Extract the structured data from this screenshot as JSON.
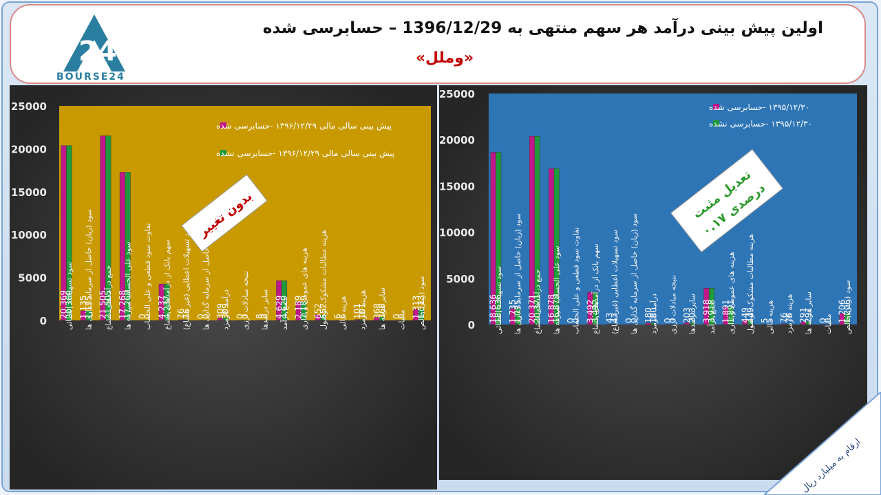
{
  "header": {
    "title": "اولین پیش بینی درآمد هر سهم منتهی به 1396/12/29 – حسابرسی شده",
    "subtitle": "«وملل»"
  },
  "logo": {
    "text": "BOURSE24"
  },
  "left_chart_note": "بدون تغییر",
  "right_chart_note_line1": "تعدیل مثبت",
  "right_chart_note_line2": "۰.۱۷ درصدی",
  "corner_note": "ارقام به میلیارد ریال",
  "colors": {
    "magenta": "#c0178a",
    "green": "#1f9a3a",
    "left_plot_bg": "#c89a00",
    "right_plot_bg": "#2e75b6",
    "header_border": "#d98a8a"
  },
  "chart_data": [
    {
      "type": "bar",
      "ylim": [
        0,
        25000
      ],
      "yticks": [
        "0",
        "5000",
        "10000",
        "15000",
        "20000",
        "25000"
      ],
      "categories": [
        "سود تسهیلات اعطائی",
        "سود (زیان) حاصل از سرمایه گذاری ها",
        "جمع درآمدهای مشاع",
        "سود علی الحساب سپرده ها",
        "تفاوت سود قطعی و علی الحساب",
        "سهم بانک از درآمدهای مشاع",
        "سود تسهیلات اعطایی (غیر مشاع)",
        "سود (زیان) حاصل از سرمایه گذاری ها ",
        "درآمد کارمزد",
        "نتیجه مبادلات ارزی",
        "سایر درآمدها",
        "جمع درآمد",
        "هزینه های عمومی و اداری",
        "هزینه مطالبات مشکوک الوصول",
        "هزینه مالی",
        "هزینه کارمزد",
        "سایر هزینه ها",
        "مالیات",
        "سود (زیان)خالص"
      ],
      "series": [
        {
          "name": "پیش بینی سالی مالی ۱۳۹۶/۱۲/۲۹ -حسابرسی شده",
          "values": [
            20369,
            1135,
            21505,
            17268,
            0,
            4237,
            76,
            0,
            309,
            0,
            8,
            4629,
            2189,
            652,
            6,
            101,
            368,
            0,
            1313
          ],
          "labels": [
            "20,369",
            "1,135",
            "21,505",
            "17,268",
            "0",
            "4,237",
            "76",
            "0",
            "309",
            "0",
            "8",
            "4,629",
            "2,189",
            "652",
            "6",
            "101",
            "368",
            "0",
            "1,313"
          ]
        },
        {
          "name": "پیش بینی سالی مالی ۱۳۹۶/۱۲/۲۹ -حسابرسی نشده",
          "values": [
            20369,
            1135,
            21505,
            17268,
            0,
            4237,
            76,
            0,
            309,
            0,
            8,
            4629,
            2189,
            652,
            6,
            101,
            368,
            0,
            1313
          ],
          "labels": [
            "20,369",
            "1,135",
            "21,505",
            "17,268",
            "0",
            "4,237",
            "76",
            "0",
            "309",
            "0",
            "8",
            "4,629",
            "2,189",
            "652",
            "6",
            "101",
            "368",
            "0",
            "1,313"
          ]
        }
      ]
    },
    {
      "type": "bar",
      "ylim": [
        0,
        25000
      ],
      "yticks": [
        "0",
        "5000",
        "10000",
        "15000",
        "20000",
        "25000"
      ],
      "categories": [
        "سود تسهیلات اعطائی",
        "سود (زیان) حاصل از سرمایه گذاری ها",
        "جمع درآمدهای مشاع",
        "سود علی الحساب سپرده ها",
        "تفاوت سود قطعی و علی الحساب",
        "سهم بانک از درآمدهای مشاع",
        "سود تسهیلات اعطایی (غیرمشاع)",
        "سود (زیان) حاصل از سرمایه گذاری ها ",
        "درآمد کارمزد",
        "نتیجه مبادلات ارزی",
        "سایر درآمدها",
        "جمع درآمد",
        "هزینه های عمومی و اداری",
        "هزینه مطالبات مشکوک الوصول",
        "هزینه مالی",
        "هزینه کارمزد",
        "سایر هزینه ها",
        "مالیات",
        "سود (زیان)خالص"
      ],
      "series": [
        {
          "name": "۱۳۹۵/۱۲/۳۰ -حسابرسی شده",
          "values": [
            18636,
            1735,
            20371,
            16878,
            0,
            3492,
            43,
            0,
            180,
            0,
            203,
            3918,
            1891,
            449,
            5,
            76,
            291,
            0,
            1206
          ],
          "labels": [
            "18,636",
            "1,735",
            "20,371",
            "16,878",
            "0",
            "3,492",
            "43",
            "0",
            "180",
            "0",
            "203",
            "3,918",
            "1,891",
            "449",
            "5",
            "76",
            "291",
            "0",
            "1,206"
          ]
        },
        {
          "name": "۱۳۹۵/۱۲/۳۰ -حسابرسی نشده",
          "values": [
            18636,
            1735,
            20371,
            16878,
            0,
            3492,
            43,
            0,
            180,
            0,
            203,
            3918,
            1891,
            449,
            5,
            76,
            291,
            0,
            1206
          ],
          "labels": [
            "18,636",
            "1,735",
            "20,371",
            "16,878",
            "0",
            "3,492",
            "43",
            "0",
            "180",
            "0",
            "203",
            "3,918",
            "1,891",
            "449",
            "5",
            "76",
            "291",
            "0",
            "1,206"
          ]
        }
      ]
    }
  ]
}
